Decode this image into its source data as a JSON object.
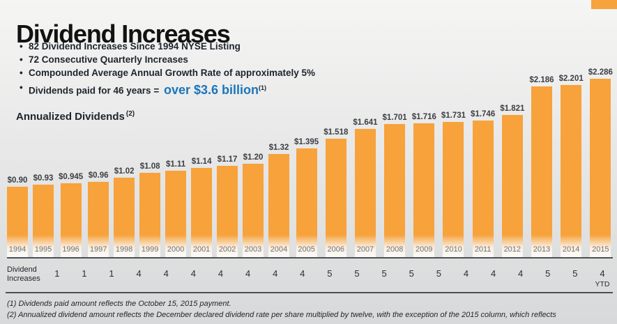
{
  "colors": {
    "accent": "#F7A23B",
    "highlight_blue": "#1B75BC"
  },
  "title": "Dividend Increases",
  "bullets": [
    "82 Dividend Increases Since 1994 NYSE Listing",
    "72 Consecutive Quarterly Increases",
    "Compounded Average Annual Growth Rate of approximately 5%"
  ],
  "dividends_line": {
    "prefix": "Dividends paid for 46 years = ",
    "highlight": "over $3.6 billion",
    "superscript": "(1)"
  },
  "section_label": {
    "text": "Annualized Dividends",
    "superscript": "(2)"
  },
  "chart_data": {
    "type": "bar",
    "title": "Annualized Dividends",
    "xlabel": "",
    "ylabel": "",
    "ylim": [
      0,
      2.4
    ],
    "grid": false,
    "legend": "none",
    "categories": [
      "1994",
      "1995",
      "1996",
      "1997",
      "1998",
      "1999",
      "2000",
      "2001",
      "2002",
      "2003",
      "2004",
      "2005",
      "2006",
      "2007",
      "2008",
      "2009",
      "2010",
      "2011",
      "2012",
      "2013",
      "2014",
      "2015"
    ],
    "values": [
      0.9,
      0.93,
      0.945,
      0.96,
      1.02,
      1.08,
      1.11,
      1.14,
      1.17,
      1.2,
      1.32,
      1.395,
      1.518,
      1.641,
      1.701,
      1.716,
      1.731,
      1.746,
      1.821,
      2.186,
      2.201,
      2.286
    ],
    "labels": [
      "$0.90",
      "$0.93",
      "$0.945",
      "$0.96",
      "$1.02",
      "$1.08",
      "$1.11",
      "$1.14",
      "$1.17",
      "$1.20",
      "$1.32",
      "$1.395",
      "$1.518",
      "$1.641",
      "$1.701",
      "$1.716",
      "$1.731",
      "$1.746",
      "$1.821",
      "$2.186",
      "$2.201",
      "$2.286"
    ]
  },
  "increases_row": {
    "label_line1": "Dividend",
    "label_line2": "Increases",
    "values": [
      "1",
      "1",
      "1",
      "4",
      "4",
      "4",
      "4",
      "4",
      "4",
      "4",
      "5",
      "5",
      "5",
      "5",
      "5",
      "4",
      "4",
      "4",
      "5",
      "5",
      "4"
    ],
    "last_note": "YTD"
  },
  "footnotes": [
    "(1) Dividends paid amount reflects the October 15, 2015 payment.",
    "(2) Annualized dividend amount reflects the December declared dividend rate per share multiplied by twelve, with the exception of the 2015 column, which reflects"
  ]
}
